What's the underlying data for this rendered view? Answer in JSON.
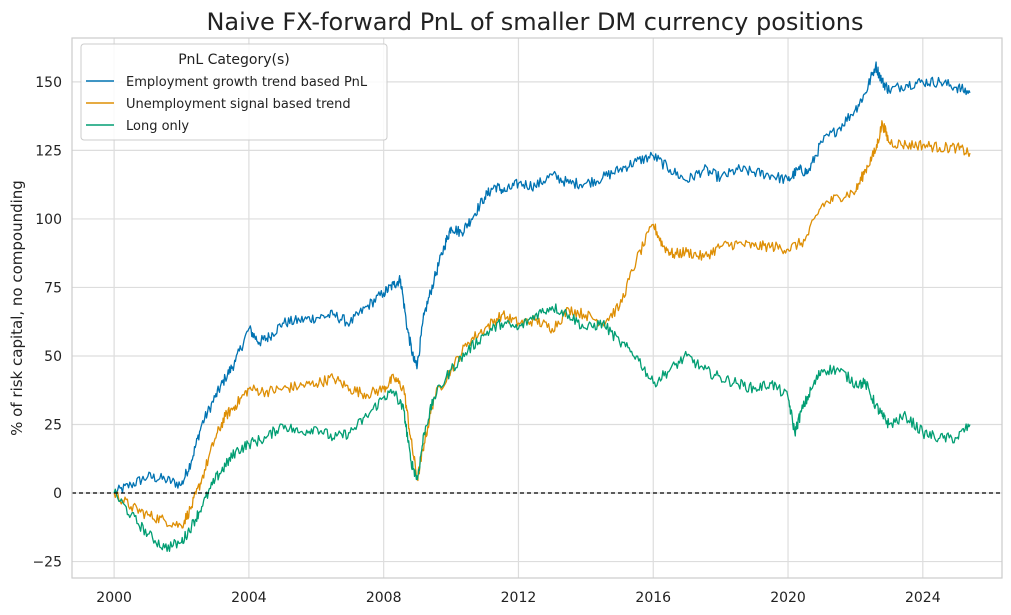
{
  "chart_data": {
    "type": "line",
    "title": "Naive FX-forward PnL of smaller DM currency positions",
    "xlabel": "",
    "ylabel": "% of risk capital, no compounding",
    "xlim": [
      1998.75,
      2026.35
    ],
    "ylim": [
      -31,
      166
    ],
    "xticks": [
      2000,
      2004,
      2008,
      2012,
      2016,
      2020,
      2024
    ],
    "yticks": [
      -25,
      0,
      25,
      50,
      75,
      100,
      125,
      150
    ],
    "grid": true,
    "zero_line": {
      "y": 0,
      "style": "dashed",
      "color": "#000000"
    },
    "legend": {
      "title": "PnL Category(s)",
      "position": "top-left"
    },
    "series": [
      {
        "name": "Employment growth trend based PnL",
        "color": "#0173b2",
        "x": [
          2000.0,
          2000.5,
          2001.0,
          2001.5,
          2002.0,
          2002.3,
          2002.6,
          2003.0,
          2003.3,
          2003.6,
          2004.0,
          2004.3,
          2004.6,
          2005.0,
          2005.5,
          2006.0,
          2006.5,
          2007.0,
          2007.5,
          2008.0,
          2008.3,
          2008.5,
          2008.7,
          2008.9,
          2009.0,
          2009.2,
          2009.5,
          2009.8,
          2010.0,
          2010.3,
          2010.6,
          2011.0,
          2011.3,
          2011.6,
          2012.0,
          2012.5,
          2013.0,
          2013.5,
          2014.0,
          2014.5,
          2015.0,
          2015.5,
          2016.0,
          2016.5,
          2017.0,
          2017.5,
          2018.0,
          2018.5,
          2019.0,
          2019.5,
          2020.0,
          2020.3,
          2020.6,
          2021.0,
          2021.5,
          2022.0,
          2022.3,
          2022.6,
          2022.8,
          2023.0,
          2023.5,
          2024.0,
          2024.5,
          2025.0,
          2025.4
        ],
        "values": [
          0,
          3,
          6,
          5,
          3,
          12,
          25,
          35,
          42,
          48,
          60,
          55,
          57,
          62,
          63,
          64,
          65,
          62,
          68,
          73,
          76,
          78,
          60,
          48,
          47,
          65,
          78,
          90,
          97,
          95,
          100,
          108,
          112,
          110,
          113,
          112,
          116,
          113,
          113,
          115,
          118,
          121,
          123,
          118,
          114,
          118,
          115,
          118,
          117,
          116,
          114,
          118,
          117,
          128,
          133,
          140,
          146,
          156,
          150,
          147,
          149,
          150,
          150,
          148,
          146
        ]
      },
      {
        "name": "Unemployment signal based trend",
        "color": "#de8f05",
        "x": [
          2000.0,
          2000.5,
          2001.0,
          2001.5,
          2002.0,
          2002.3,
          2002.6,
          2003.0,
          2003.3,
          2003.6,
          2004.0,
          2004.5,
          2005.0,
          2005.5,
          2006.0,
          2006.5,
          2007.0,
          2007.5,
          2008.0,
          2008.3,
          2008.6,
          2008.8,
          2009.0,
          2009.2,
          2009.5,
          2010.0,
          2010.5,
          2011.0,
          2011.5,
          2012.0,
          2012.5,
          2013.0,
          2013.5,
          2014.0,
          2014.5,
          2015.0,
          2015.5,
          2016.0,
          2016.3,
          2016.6,
          2017.0,
          2017.5,
          2018.0,
          2018.5,
          2019.0,
          2019.5,
          2020.0,
          2020.5,
          2021.0,
          2021.5,
          2022.0,
          2022.3,
          2022.6,
          2022.8,
          2023.0,
          2023.5,
          2024.0,
          2024.5,
          2025.0,
          2025.4
        ],
        "values": [
          0,
          -5,
          -8,
          -10,
          -12,
          -5,
          5,
          20,
          28,
          32,
          38,
          37,
          38,
          39,
          40,
          42,
          38,
          36,
          38,
          42,
          38,
          20,
          5,
          18,
          35,
          45,
          55,
          60,
          65,
          62,
          63,
          60,
          67,
          65,
          62,
          68,
          85,
          98,
          90,
          87,
          88,
          86,
          90,
          91,
          90,
          90,
          89,
          92,
          105,
          108,
          110,
          118,
          125,
          135,
          128,
          127,
          127,
          126,
          126,
          124
        ]
      },
      {
        "name": "Long only",
        "color": "#029e73",
        "x": [
          2000.0,
          2000.5,
          2001.0,
          2001.5,
          2002.0,
          2002.3,
          2002.6,
          2003.0,
          2003.3,
          2003.6,
          2004.0,
          2004.5,
          2005.0,
          2005.5,
          2006.0,
          2006.5,
          2007.0,
          2007.5,
          2008.0,
          2008.3,
          2008.6,
          2008.8,
          2009.0,
          2009.2,
          2009.5,
          2010.0,
          2010.5,
          2011.0,
          2011.5,
          2012.0,
          2012.5,
          2013.0,
          2013.5,
          2014.0,
          2014.5,
          2015.0,
          2015.5,
          2016.0,
          2016.5,
          2017.0,
          2017.5,
          2018.0,
          2018.5,
          2019.0,
          2019.5,
          2020.0,
          2020.2,
          2020.4,
          2020.7,
          2021.0,
          2021.5,
          2022.0,
          2022.3,
          2022.6,
          2022.8,
          2023.0,
          2023.5,
          2024.0,
          2024.5,
          2025.0,
          2025.4
        ],
        "values": [
          0,
          -8,
          -15,
          -20,
          -18,
          -12,
          -5,
          5,
          10,
          15,
          18,
          20,
          25,
          22,
          24,
          20,
          22,
          28,
          35,
          37,
          30,
          12,
          5,
          22,
          35,
          45,
          52,
          58,
          62,
          60,
          65,
          68,
          65,
          60,
          62,
          55,
          50,
          40,
          45,
          50,
          45,
          42,
          40,
          38,
          40,
          35,
          22,
          30,
          38,
          45,
          45,
          40,
          40,
          32,
          28,
          25,
          28,
          22,
          20,
          20,
          25
        ]
      }
    ]
  }
}
